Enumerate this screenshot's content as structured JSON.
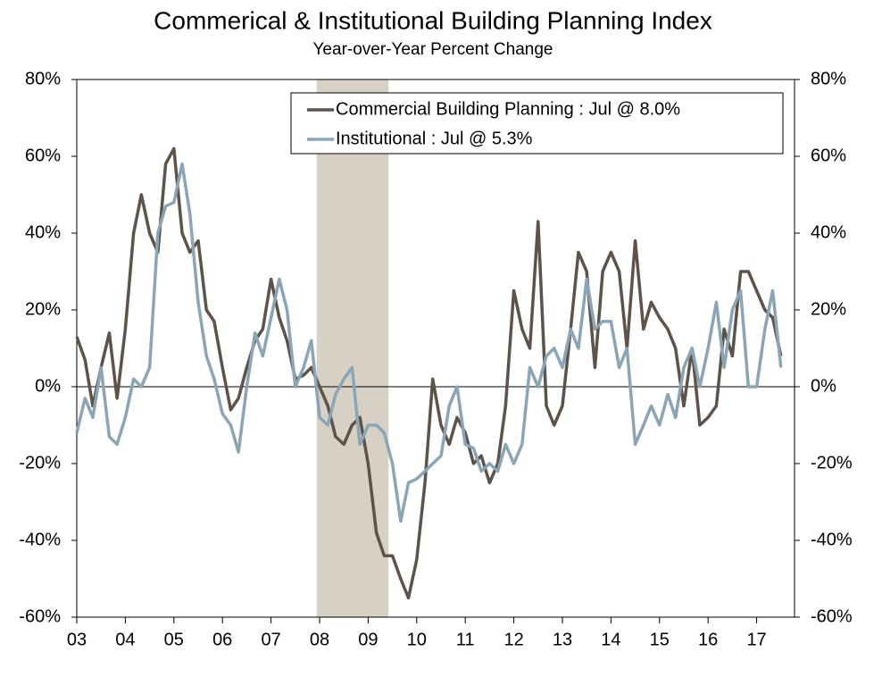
{
  "chart_data": {
    "type": "line",
    "title": "Commerical & Institutional Building Planning Index",
    "subtitle": "Year-over-Year Percent Change",
    "x": [
      2003,
      2003.17,
      2003.33,
      2003.5,
      2003.67,
      2003.83,
      2004,
      2004.17,
      2004.33,
      2004.5,
      2004.67,
      2004.83,
      2005,
      2005.17,
      2005.33,
      2005.5,
      2005.67,
      2005.83,
      2006,
      2006.17,
      2006.33,
      2006.5,
      2006.67,
      2006.83,
      2007,
      2007.17,
      2007.33,
      2007.5,
      2007.67,
      2007.83,
      2008,
      2008.17,
      2008.33,
      2008.5,
      2008.67,
      2008.83,
      2009,
      2009.17,
      2009.33,
      2009.5,
      2009.67,
      2009.83,
      2010,
      2010.17,
      2010.33,
      2010.5,
      2010.67,
      2010.83,
      2011,
      2011.17,
      2011.33,
      2011.5,
      2011.67,
      2011.83,
      2012,
      2012.17,
      2012.33,
      2012.5,
      2012.67,
      2012.83,
      2013,
      2013.17,
      2013.33,
      2013.5,
      2013.67,
      2013.83,
      2014,
      2014.17,
      2014.33,
      2014.5,
      2014.67,
      2014.83,
      2015,
      2015.17,
      2015.33,
      2015.5,
      2015.67,
      2015.83,
      2016,
      2016.17,
      2016.33,
      2016.5,
      2016.67,
      2016.83,
      2017,
      2017.17,
      2017.33,
      2017.5
    ],
    "series": [
      {
        "name": "Commercial Building Planning : Jul @ 8.0%",
        "color": "#5e5349",
        "values": [
          13,
          7,
          -5,
          5,
          14,
          -3,
          15,
          40,
          50,
          40,
          35,
          58,
          62,
          40,
          35,
          38,
          20,
          17,
          5,
          -6,
          -3,
          5,
          12,
          15,
          28,
          18,
          12,
          2,
          3,
          5,
          0,
          -5,
          -13,
          -15,
          -10,
          -8,
          -20,
          -38,
          -44,
          -44,
          -50,
          -55,
          -45,
          -25,
          2,
          -10,
          -15,
          -8,
          -12,
          -20,
          -18,
          -25,
          -20,
          -5,
          25,
          15,
          10,
          43,
          -5,
          -10,
          -5,
          15,
          35,
          30,
          5,
          30,
          35,
          30,
          10,
          38,
          15,
          22,
          18,
          15,
          10,
          -5,
          10,
          -10,
          -8,
          -5,
          15,
          8,
          30,
          30,
          25,
          20,
          18,
          8
        ]
      },
      {
        "name": "Institutional : Jul @ 5.3%",
        "color": "#8aa5b5",
        "values": [
          -12,
          -3,
          -8,
          5,
          -13,
          -15,
          -8,
          2,
          0,
          5,
          40,
          47,
          48,
          58,
          45,
          22,
          8,
          2,
          -7,
          -10,
          -17,
          0,
          14,
          8,
          18,
          28,
          20,
          0,
          5,
          12,
          -8,
          -10,
          -2,
          2,
          5,
          -15,
          -10,
          -10,
          -12,
          -20,
          -35,
          -25,
          -24,
          -22,
          -20,
          -18,
          -5,
          0,
          -15,
          -16,
          -22,
          -20,
          -22,
          -15,
          -20,
          -15,
          5,
          0,
          8,
          10,
          5,
          15,
          10,
          28,
          15,
          17,
          17,
          5,
          10,
          -15,
          -10,
          -5,
          -10,
          -2,
          -8,
          5,
          10,
          0,
          10,
          22,
          5,
          20,
          25,
          0,
          0,
          15,
          25,
          5
        ]
      }
    ],
    "xlim": [
      2003,
      2017.78
    ],
    "xticks": [
      {
        "value": 2003,
        "label": "03"
      },
      {
        "value": 2004,
        "label": "04"
      },
      {
        "value": 2005,
        "label": "05"
      },
      {
        "value": 2006,
        "label": "06"
      },
      {
        "value": 2007,
        "label": "07"
      },
      {
        "value": 2008,
        "label": "08"
      },
      {
        "value": 2009,
        "label": "09"
      },
      {
        "value": 2010,
        "label": "10"
      },
      {
        "value": 2011,
        "label": "11"
      },
      {
        "value": 2012,
        "label": "12"
      },
      {
        "value": 2013,
        "label": "13"
      },
      {
        "value": 2014,
        "label": "14"
      },
      {
        "value": 2015,
        "label": "15"
      },
      {
        "value": 2016,
        "label": "16"
      },
      {
        "value": 2017,
        "label": "17"
      }
    ],
    "ylim": [
      -60,
      80
    ],
    "yticks": [
      {
        "value": -60,
        "label": "-60%"
      },
      {
        "value": -40,
        "label": "-40%"
      },
      {
        "value": -20,
        "label": "-20%"
      },
      {
        "value": 0,
        "label": "0%"
      },
      {
        "value": 20,
        "label": "20%"
      },
      {
        "value": 40,
        "label": "40%"
      },
      {
        "value": 60,
        "label": "60%"
      },
      {
        "value": 80,
        "label": "80%"
      }
    ],
    "shaded_range": [
      2007.94,
      2009.42
    ],
    "shade_color": "#d6d1c4",
    "legend": "top right"
  }
}
